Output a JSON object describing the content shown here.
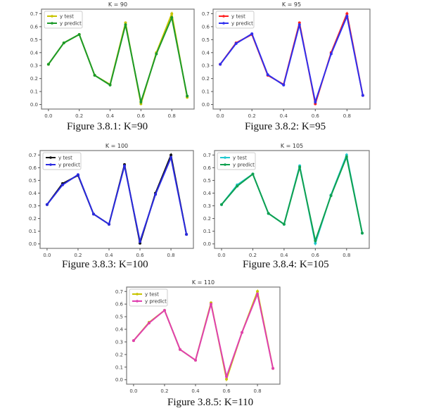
{
  "figures": [
    {
      "title": "K = 90",
      "caption": "Figure 3.8.1: K=90",
      "test_color": "#c8c400",
      "pred_color": "#1c9a2a",
      "legend": [
        "y test",
        "y predict"
      ],
      "x": [
        0.0,
        0.1,
        0.2,
        0.3,
        0.4,
        0.5,
        0.6,
        0.7,
        0.8,
        0.9
      ],
      "y_test": [
        0.31,
        0.475,
        0.54,
        0.225,
        0.155,
        0.63,
        0.005,
        0.4,
        0.7,
        0.055
      ],
      "y_predict": [
        0.31,
        0.475,
        0.54,
        0.225,
        0.15,
        0.615,
        0.02,
        0.39,
        0.67,
        0.065
      ]
    },
    {
      "title": "K = 95",
      "caption": "Figure 3.8.2: K=95",
      "test_color": "#ff2020",
      "pred_color": "#3030ee",
      "legend": [
        "y test",
        "y predict"
      ],
      "x": [
        0.0,
        0.1,
        0.2,
        0.3,
        0.4,
        0.5,
        0.6,
        0.7,
        0.8,
        0.9
      ],
      "y_test": [
        0.31,
        0.475,
        0.54,
        0.225,
        0.155,
        0.63,
        0.005,
        0.4,
        0.7,
        0.07
      ],
      "y_predict": [
        0.31,
        0.47,
        0.545,
        0.23,
        0.15,
        0.615,
        0.02,
        0.39,
        0.68,
        0.07
      ]
    },
    {
      "title": "K = 100",
      "caption": "Figure 3.8.3: K=100",
      "test_color": "#111111",
      "pred_color": "#2a2ae0",
      "legend": [
        "y test",
        "y predict"
      ],
      "x": [
        0.0,
        0.1,
        0.2,
        0.3,
        0.4,
        0.5,
        0.6,
        0.7,
        0.8,
        0.9
      ],
      "y_test": [
        0.31,
        0.475,
        0.54,
        0.235,
        0.155,
        0.625,
        0.005,
        0.4,
        0.7,
        0.075
      ],
      "y_predict": [
        0.31,
        0.465,
        0.545,
        0.235,
        0.155,
        0.615,
        0.02,
        0.39,
        0.68,
        0.075
      ]
    },
    {
      "title": "K = 105",
      "caption": "Figure 3.8.4: K=105",
      "test_color": "#20c8d0",
      "pred_color": "#10a050",
      "legend": [
        "y test",
        "y predict"
      ],
      "x": [
        0.0,
        0.1,
        0.2,
        0.3,
        0.4,
        0.5,
        0.6,
        0.7,
        0.8,
        0.9
      ],
      "y_test": [
        0.31,
        0.465,
        0.55,
        0.24,
        0.155,
        0.615,
        0.005,
        0.385,
        0.7,
        0.085
      ],
      "y_predict": [
        0.31,
        0.455,
        0.55,
        0.24,
        0.155,
        0.605,
        0.025,
        0.38,
        0.685,
        0.085
      ]
    },
    {
      "title": "K = 110",
      "caption": "Figure 3.8.5: K=110",
      "test_color": "#c8c400",
      "pred_color": "#e040b0",
      "legend": [
        "y test",
        "y predict"
      ],
      "x": [
        0.0,
        0.1,
        0.2,
        0.3,
        0.4,
        0.5,
        0.6,
        0.7,
        0.8,
        0.9
      ],
      "y_test": [
        0.31,
        0.455,
        0.55,
        0.24,
        0.155,
        0.61,
        0.005,
        0.375,
        0.7,
        0.09
      ],
      "y_predict": [
        0.31,
        0.45,
        0.55,
        0.24,
        0.155,
        0.6,
        0.025,
        0.375,
        0.68,
        0.09
      ]
    }
  ],
  "chart_data": [
    {
      "type": "line",
      "title": "K = 90",
      "xlim": [
        -0.045,
        0.945
      ],
      "ylim": [
        -0.035,
        0.735
      ],
      "xticks": [
        "0.0",
        "0.2",
        "0.4",
        "0.6",
        "0.8"
      ],
      "yticks": [
        "0.0",
        "0.1",
        "0.2",
        "0.3",
        "0.4",
        "0.5",
        "0.6",
        "0.7"
      ],
      "legend_position": "top-left",
      "grid": false
    },
    {
      "type": "line",
      "title": "K = 95",
      "xlim": [
        -0.045,
        0.945
      ],
      "ylim": [
        -0.035,
        0.735
      ],
      "xticks": [
        "0.0",
        "0.2",
        "0.4",
        "0.6",
        "0.8"
      ],
      "yticks": [
        "0.0",
        "0.1",
        "0.2",
        "0.3",
        "0.4",
        "0.5",
        "0.6",
        "0.7"
      ],
      "legend_position": "top-left",
      "grid": false
    },
    {
      "type": "line",
      "title": "K = 100",
      "xlim": [
        -0.045,
        0.945
      ],
      "ylim": [
        -0.035,
        0.735
      ],
      "xticks": [
        "0.0",
        "0.2",
        "0.4",
        "0.6",
        "0.8"
      ],
      "yticks": [
        "0.0",
        "0.1",
        "0.2",
        "0.3",
        "0.4",
        "0.5",
        "0.6",
        "0.7"
      ],
      "legend_position": "top-left",
      "grid": false
    },
    {
      "type": "line",
      "title": "K = 105",
      "xlim": [
        -0.045,
        0.945
      ],
      "ylim": [
        -0.035,
        0.735
      ],
      "xticks": [
        "0.0",
        "0.2",
        "0.4",
        "0.6",
        "0.8"
      ],
      "yticks": [
        "0.0",
        "0.1",
        "0.2",
        "0.3",
        "0.4",
        "0.5",
        "0.6",
        "0.7"
      ],
      "legend_position": "top-left",
      "grid": false
    },
    {
      "type": "line",
      "title": "K = 110",
      "xlim": [
        -0.045,
        0.945
      ],
      "ylim": [
        -0.035,
        0.735
      ],
      "xticks": [
        "0.0",
        "0.2",
        "0.4",
        "0.6",
        "0.8"
      ],
      "yticks": [
        "0.0",
        "0.1",
        "0.2",
        "0.3",
        "0.4",
        "0.5",
        "0.6",
        "0.7"
      ],
      "legend_position": "top-left",
      "grid": false
    }
  ]
}
